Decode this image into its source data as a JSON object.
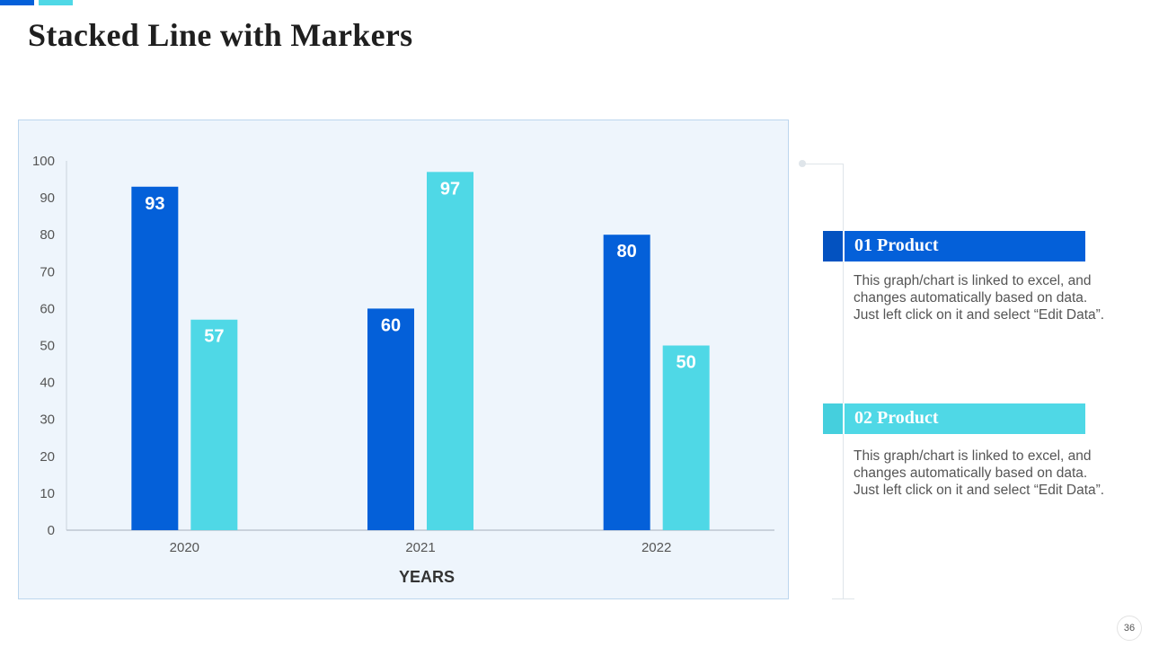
{
  "title": "Stacked Line with Markers",
  "colors": {
    "series_1": "#0460d9",
    "series_2": "#4fd8e6"
  },
  "chart_data": {
    "type": "bar",
    "categories": [
      "2020",
      "2021",
      "2022"
    ],
    "series": [
      {
        "values": [
          93,
          60,
          80
        ],
        "color": "#0460d9"
      },
      {
        "values": [
          57,
          97,
          50
        ],
        "color": "#4fd8e6"
      }
    ],
    "xlabel": "YEARS",
    "ylabel": "",
    "ylim": [
      0,
      100
    ],
    "yticks": [
      0,
      10,
      20,
      30,
      40,
      50,
      60,
      70,
      80,
      90,
      100
    ],
    "data_labels": true,
    "grid": false,
    "legend": "none"
  },
  "products": [
    {
      "label": "01 Product",
      "description": "This graph/chart is linked to excel, and\nchanges automatically based on data.\nJust left click on it and select “Edit Data”."
    },
    {
      "label": "02 Product",
      "description": "This graph/chart is linked to excel, and\nchanges automatically based on data.\nJust left click on it and select “Edit Data”."
    }
  ],
  "page_number": "36"
}
